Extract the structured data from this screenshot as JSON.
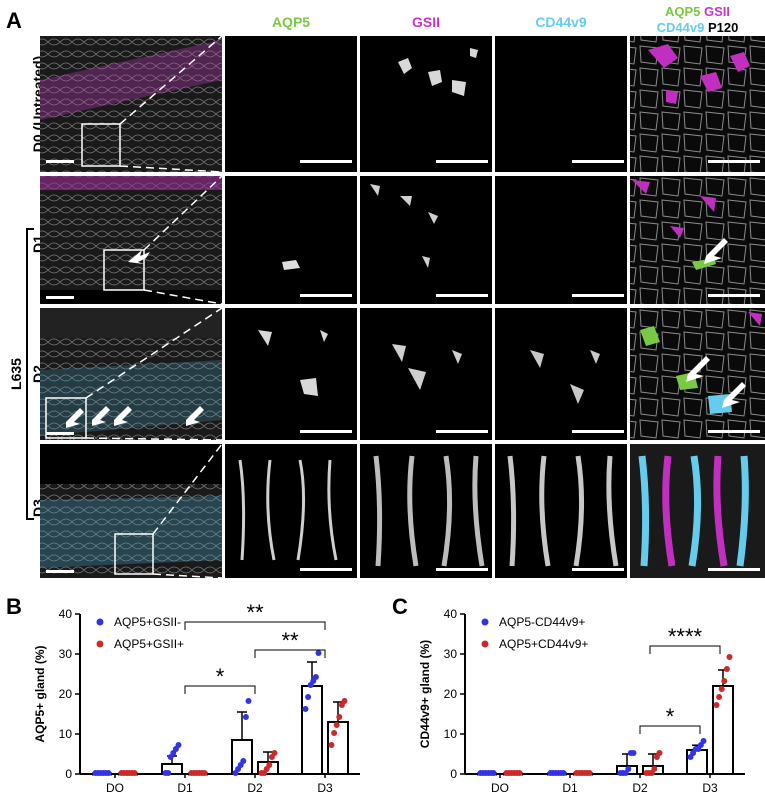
{
  "panels": {
    "a": "A",
    "b": "B",
    "c": "C"
  },
  "column_headers": {
    "aqp5": "AQP5",
    "gsii": "GSII",
    "cd44v9": "CD44v9",
    "merge_line1_a": "AQP5",
    "merge_line1_b": "GSII",
    "merge_line2_a": "CD44v9",
    "merge_line2_b": "P120"
  },
  "row_labels": {
    "d0": "D0 (Untreated)",
    "d1": "D1",
    "d2": "D2",
    "d3": "D3",
    "group": "L635"
  },
  "colors": {
    "aqp5": "#7ac943",
    "gsii": "#cc33cc",
    "cd44v9": "#66ccee",
    "blue_series": "#3333e6",
    "red_series": "#cc2a2a"
  },
  "chart_data": [
    {
      "type": "bar",
      "panel": "B",
      "ylabel": "AQP5+ gland (%)",
      "ylim": [
        0,
        40
      ],
      "yticks": [
        0,
        10,
        20,
        30,
        40
      ],
      "categories": [
        "DO",
        "D1",
        "D2",
        "D3"
      ],
      "legend_position": "top-left",
      "series": [
        {
          "name": "AQP5+GSII-",
          "values": [
            0,
            2.5,
            8.5,
            22
          ],
          "errors": [
            0,
            2,
            7,
            6
          ],
          "points": [
            [
              0,
              0,
              0,
              0,
              0,
              0
            ],
            [
              0,
              0,
              4,
              5,
              6,
              7
            ],
            [
              0,
              1,
              2,
              3,
              14,
              18
            ],
            [
              16,
              19,
              22,
              23,
              24,
              30
            ]
          ]
        },
        {
          "name": "AQP5+GSII+",
          "values": [
            0,
            0,
            3,
            13
          ],
          "errors": [
            0,
            0,
            2.5,
            5
          ],
          "points": [
            [
              0,
              0,
              0,
              0,
              0,
              0
            ],
            [
              0,
              0,
              0,
              0,
              0,
              0
            ],
            [
              0,
              0,
              1,
              2,
              4,
              5
            ],
            [
              7,
              10,
              12,
              14,
              17,
              18
            ]
          ]
        }
      ],
      "significance": [
        {
          "from": "D1",
          "to": "D2",
          "label": "*"
        },
        {
          "from": "D2",
          "to": "D3",
          "label": "**"
        },
        {
          "from": "D1",
          "to": "D3",
          "label": "**"
        }
      ]
    },
    {
      "type": "bar",
      "panel": "C",
      "ylabel": "CD44v9+ gland (%)",
      "ylim": [
        0,
        40
      ],
      "yticks": [
        0,
        10,
        20,
        30,
        40
      ],
      "categories": [
        "DO",
        "D1",
        "D2",
        "D3"
      ],
      "legend_position": "top-left",
      "series": [
        {
          "name": "AQP5-CD44v9+",
          "values": [
            0,
            0,
            2,
            6
          ],
          "errors": [
            0,
            0,
            3,
            1.2
          ],
          "points": [
            [
              0,
              0,
              0,
              0,
              0,
              0
            ],
            [
              0,
              0,
              0,
              0,
              0,
              0
            ],
            [
              0,
              0,
              0,
              1,
              5,
              5
            ],
            [
              4,
              5,
              6,
              6,
              7,
              8
            ]
          ]
        },
        {
          "name": "AQP5+CD44v9+",
          "values": [
            0,
            0,
            2,
            22
          ],
          "errors": [
            0,
            0,
            3,
            4
          ],
          "points": [
            [
              0,
              0,
              0,
              0,
              0,
              0
            ],
            [
              0,
              0,
              0,
              0,
              0,
              0
            ],
            [
              0,
              0,
              0,
              1,
              4,
              5
            ],
            [
              17,
              19,
              21,
              23,
              26,
              29
            ]
          ]
        }
      ],
      "significance": [
        {
          "from": "D2",
          "to": "D3",
          "label": "*"
        },
        {
          "from": "D2",
          "to": "D3",
          "label": "****"
        }
      ]
    }
  ]
}
